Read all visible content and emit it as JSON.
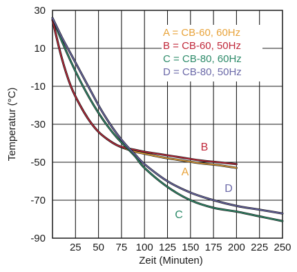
{
  "chart_data": {
    "type": "line",
    "xlabel": "Zeit (Minuten)",
    "ylabel": "Temperatur (°C)",
    "xlim": [
      0,
      250
    ],
    "ylim": [
      -90,
      30
    ],
    "xticks": [
      25,
      50,
      75,
      100,
      125,
      150,
      175,
      200,
      225,
      250
    ],
    "yticks": [
      30,
      10,
      -10,
      -30,
      -50,
      -70,
      -90
    ],
    "grid": true,
    "legend_position": "top-right",
    "series": [
      {
        "name": "A = CB-60, 60Hz",
        "curve_label": "A",
        "color": "#e8a33a",
        "x": [
          0,
          10,
          20,
          30,
          40,
          50,
          60,
          70,
          80,
          90,
          100,
          120,
          140,
          160,
          180,
          200
        ],
        "y": [
          25,
          5,
          -10,
          -20,
          -28,
          -34,
          -38,
          -41,
          -43,
          -44.5,
          -45.5,
          -47.5,
          -49,
          -50.5,
          -51.5,
          -53
        ]
      },
      {
        "name": "B = CB-60, 50Hz",
        "curve_label": "B",
        "color": "#c0283a",
        "x": [
          0,
          10,
          20,
          30,
          40,
          50,
          60,
          70,
          80,
          90,
          100,
          120,
          140,
          160,
          180,
          200
        ],
        "y": [
          25,
          5,
          -10,
          -20,
          -28,
          -34,
          -38,
          -41,
          -42.5,
          -43.5,
          -44.5,
          -46,
          -47.5,
          -49,
          -50,
          -51
        ]
      },
      {
        "name": "C = CB-80, 60Hz",
        "curve_label": "C",
        "color": "#2e8b6a",
        "x": [
          0,
          10,
          20,
          30,
          40,
          50,
          60,
          70,
          80,
          90,
          100,
          125,
          150,
          175,
          200,
          225,
          250
        ],
        "y": [
          26,
          14,
          3,
          -7,
          -16,
          -24,
          -31,
          -37,
          -42,
          -47,
          -53,
          -63,
          -70,
          -74,
          -76,
          -78.5,
          -81
        ]
      },
      {
        "name": "D = CB-80, 50Hz",
        "curve_label": "D",
        "color": "#6b69a8",
        "x": [
          0,
          10,
          20,
          30,
          40,
          50,
          60,
          70,
          80,
          90,
          100,
          125,
          150,
          175,
          200,
          225,
          250
        ],
        "y": [
          26,
          16,
          7,
          -2,
          -11,
          -20,
          -28,
          -35,
          -41,
          -46,
          -51,
          -60,
          -66,
          -70,
          -73,
          -75,
          -77
        ]
      }
    ]
  }
}
